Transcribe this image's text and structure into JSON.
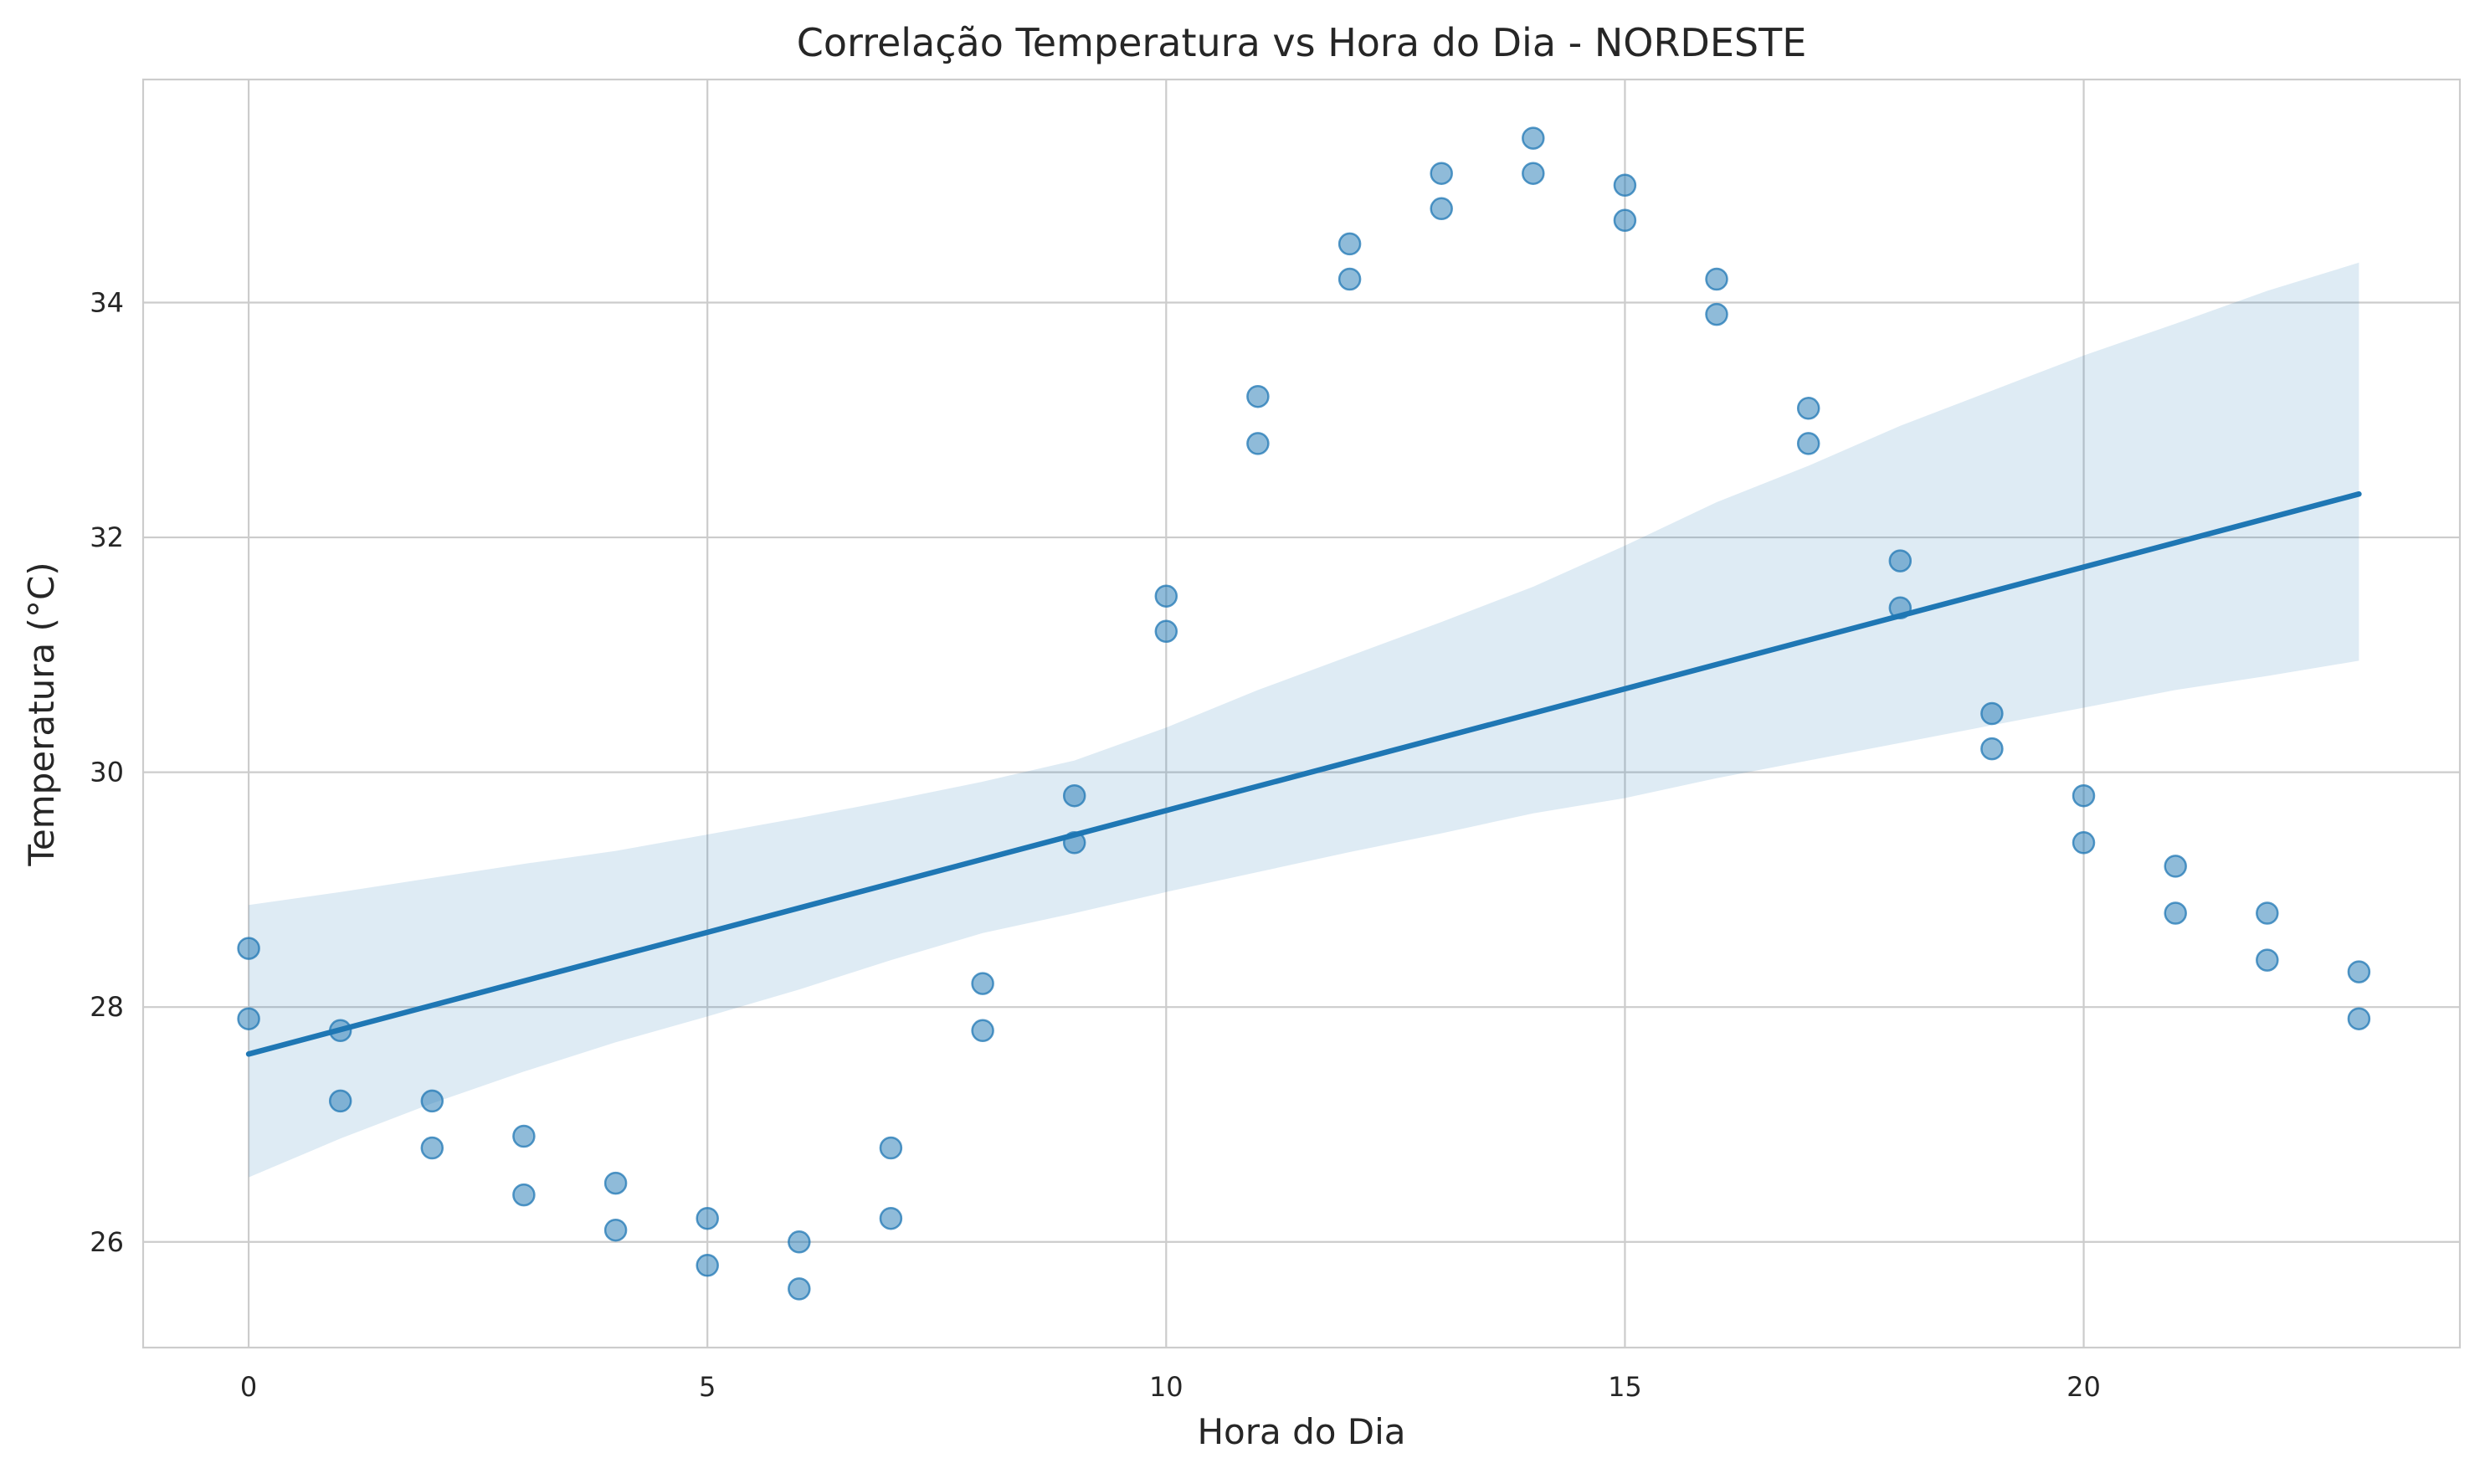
{
  "chart_data": {
    "type": "scatter",
    "title": "Correlação Temperatura vs Hora do Dia - NORDESTE",
    "xlabel": "Hora do Dia",
    "ylabel": "Temperatura (°C)",
    "xlim": [
      -1.15,
      24.1
    ],
    "ylim": [
      25.1,
      35.9
    ],
    "x_ticks": [
      0,
      5,
      10,
      15,
      20
    ],
    "x_tick_labels": [
      "0",
      "5",
      "10",
      "15",
      "20"
    ],
    "y_ticks": [
      26,
      28,
      30,
      32,
      34
    ],
    "y_tick_labels": [
      "26",
      "28",
      "30",
      "32",
      "34"
    ],
    "grid": true,
    "series": [
      {
        "type": "scatter",
        "color": "#1f77b4",
        "opacity": 0.5,
        "points": [
          [
            0,
            28.5
          ],
          [
            0,
            27.9
          ],
          [
            1,
            27.8
          ],
          [
            1,
            27.2
          ],
          [
            2,
            27.2
          ],
          [
            2,
            26.8
          ],
          [
            3,
            26.9
          ],
          [
            3,
            26.4
          ],
          [
            4,
            26.5
          ],
          [
            4,
            26.1
          ],
          [
            5,
            26.2
          ],
          [
            5,
            25.8
          ],
          [
            6,
            26.0
          ],
          [
            6,
            25.6
          ],
          [
            7,
            26.8
          ],
          [
            7,
            26.2
          ],
          [
            8,
            28.2
          ],
          [
            8,
            27.8
          ],
          [
            9,
            29.8
          ],
          [
            9,
            29.4
          ],
          [
            10,
            31.5
          ],
          [
            10,
            31.2
          ],
          [
            11,
            33.2
          ],
          [
            11,
            32.8
          ],
          [
            12,
            34.5
          ],
          [
            12,
            34.2
          ],
          [
            13,
            35.1
          ],
          [
            13,
            34.8
          ],
          [
            14,
            35.4
          ],
          [
            14,
            35.1
          ],
          [
            15,
            35.0
          ],
          [
            15,
            34.7
          ],
          [
            16,
            34.2
          ],
          [
            16,
            33.9
          ],
          [
            17,
            33.1
          ],
          [
            17,
            32.8
          ],
          [
            18,
            31.8
          ],
          [
            18,
            31.4
          ],
          [
            19,
            30.5
          ],
          [
            19,
            30.2
          ],
          [
            20,
            29.8
          ],
          [
            20,
            29.4
          ],
          [
            21,
            29.2
          ],
          [
            21,
            28.8
          ],
          [
            22,
            28.8
          ],
          [
            22,
            28.4
          ],
          [
            23,
            28.3
          ],
          [
            23,
            27.9
          ]
        ]
      },
      {
        "type": "line",
        "color": "#1f77b4",
        "x": [
          0,
          23
        ],
        "y": [
          27.6,
          32.37
        ]
      }
    ],
    "confidence_band": {
      "color": "#1f77b4",
      "opacity": 0.15,
      "x": [
        0,
        1,
        2,
        3,
        4,
        5,
        6,
        7,
        8,
        9,
        10,
        11,
        12,
        13,
        14,
        15,
        16,
        17,
        18,
        19,
        20,
        21,
        22,
        23
      ],
      "lower": [
        26.55,
        26.88,
        27.18,
        27.45,
        27.7,
        27.92,
        28.15,
        28.4,
        28.63,
        28.8,
        28.98,
        29.15,
        29.32,
        29.48,
        29.65,
        29.78,
        29.95,
        30.1,
        30.25,
        30.4,
        30.55,
        30.7,
        30.82,
        30.95
      ],
      "upper": [
        28.87,
        28.98,
        29.1,
        29.22,
        29.33,
        29.47,
        29.61,
        29.76,
        29.92,
        30.1,
        30.38,
        30.7,
        30.99,
        31.28,
        31.58,
        31.93,
        32.3,
        32.61,
        32.95,
        33.25,
        33.55,
        33.82,
        34.1,
        34.34
      ]
    }
  }
}
